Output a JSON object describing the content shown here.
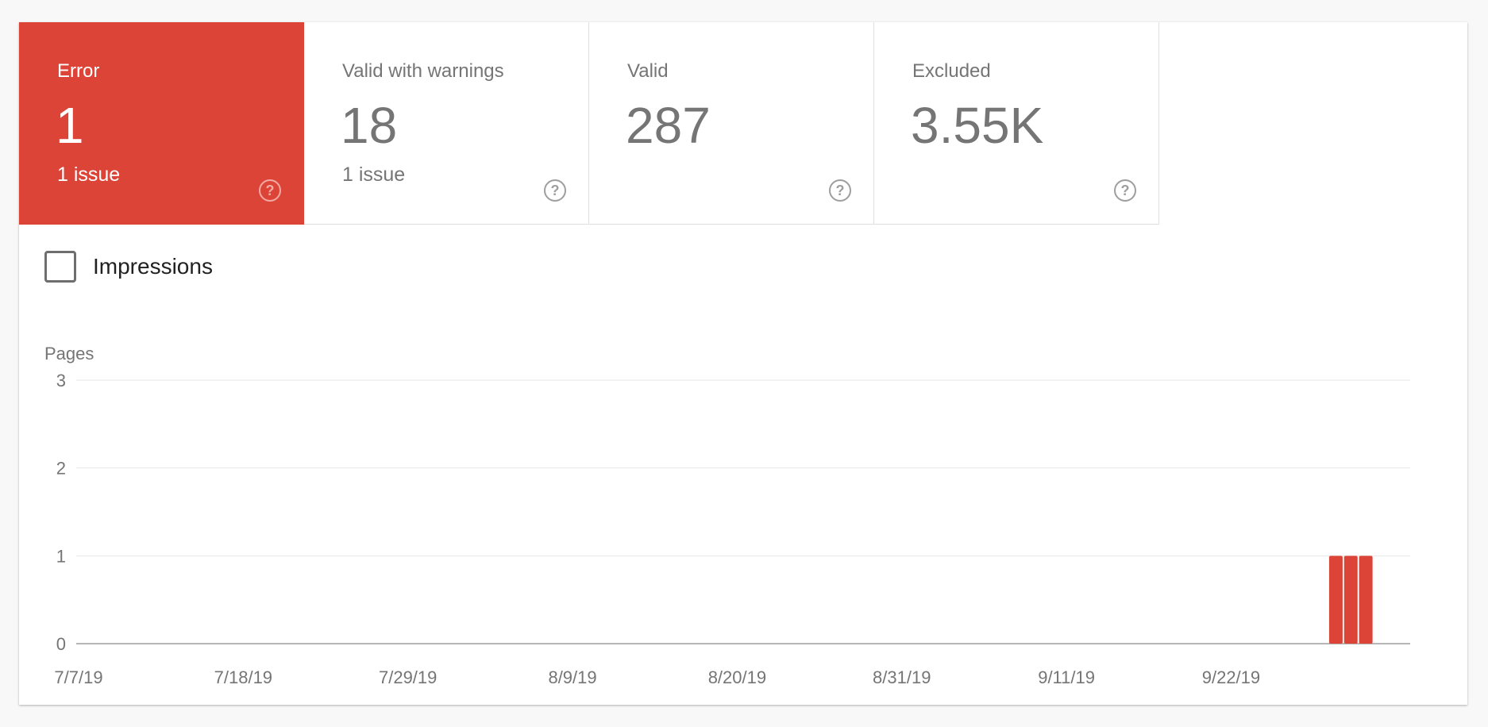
{
  "tiles": [
    {
      "label": "Error",
      "value": "1",
      "sub": "1 issue",
      "help": "?",
      "active": true
    },
    {
      "label": "Valid with warnings",
      "value": "18",
      "sub": "1 issue",
      "help": "?",
      "active": false
    },
    {
      "label": "Valid",
      "value": "287",
      "sub": "",
      "help": "?",
      "active": false
    },
    {
      "label": "Excluded",
      "value": "3.55K",
      "sub": "",
      "help": "?",
      "active": false
    }
  ],
  "impressions": {
    "label": "Impressions",
    "checked": false
  },
  "colors": {
    "error": "#db4437",
    "grid": "#e6e6e6",
    "axis": "#9e9e9e",
    "text": "#757575"
  },
  "chart_data": {
    "type": "bar",
    "ylabel": "Pages",
    "ylim": [
      0,
      3
    ],
    "yticks": [
      0,
      1,
      2,
      3
    ],
    "x_start": "7/7/19",
    "x_end": "10/1/19",
    "xtick_labels": [
      "7/7/19",
      "7/18/19",
      "7/29/19",
      "8/9/19",
      "8/20/19",
      "8/31/19",
      "9/11/19",
      "9/22/19"
    ],
    "series": [
      {
        "color": "#db4437",
        "points": [
          {
            "x": "9/29/19",
            "y": 1
          },
          {
            "x": "9/30/19",
            "y": 1
          },
          {
            "x": "10/1/19",
            "y": 1
          }
        ]
      }
    ],
    "grid": true
  }
}
